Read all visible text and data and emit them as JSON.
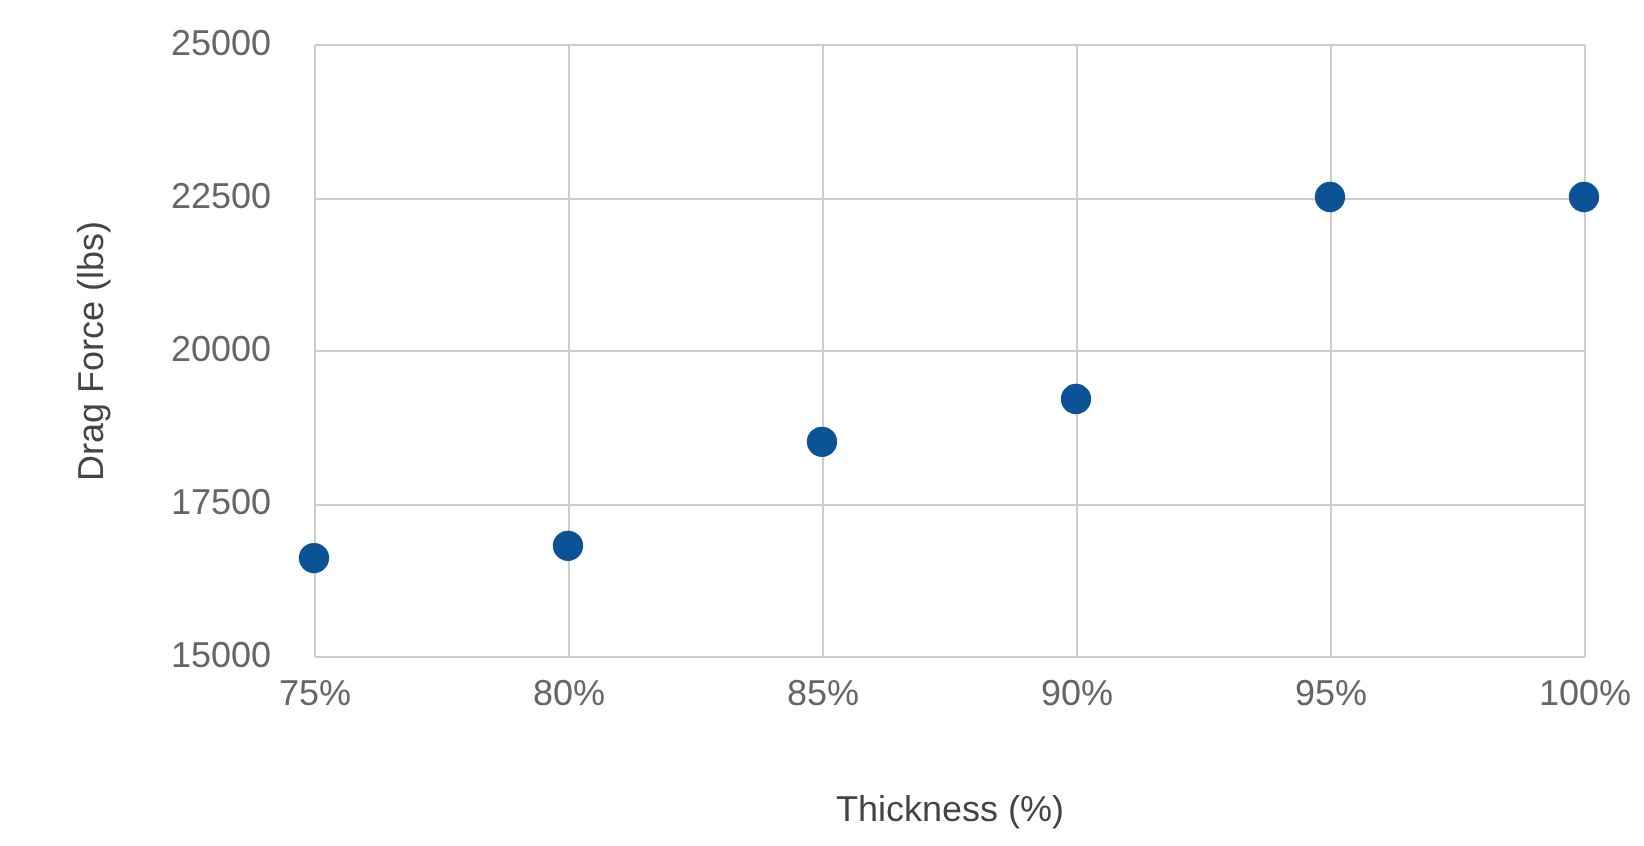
{
  "chart_data": {
    "type": "scatter",
    "xlabel": "Thickness (%)",
    "ylabel": "Drag Force (lbs)",
    "x": [
      75,
      80,
      85,
      90,
      95,
      100
    ],
    "series": [
      {
        "color": "#0b5394",
        "values": [
          16600,
          16800,
          18500,
          19200,
          22500,
          22500
        ]
      }
    ],
    "xlim": [
      75,
      100
    ],
    "xticks": [
      {
        "value": 75,
        "label": "75%"
      },
      {
        "value": 80,
        "label": "80%"
      },
      {
        "value": 85,
        "label": "85%"
      },
      {
        "value": 90,
        "label": "90%"
      },
      {
        "value": 95,
        "label": "95%"
      },
      {
        "value": 100,
        "label": "100%"
      }
    ],
    "ylim": [
      15000,
      25000
    ],
    "yticks": [
      15000,
      17500,
      20000,
      22500,
      25000
    ],
    "grid": true,
    "marker": "circle"
  }
}
